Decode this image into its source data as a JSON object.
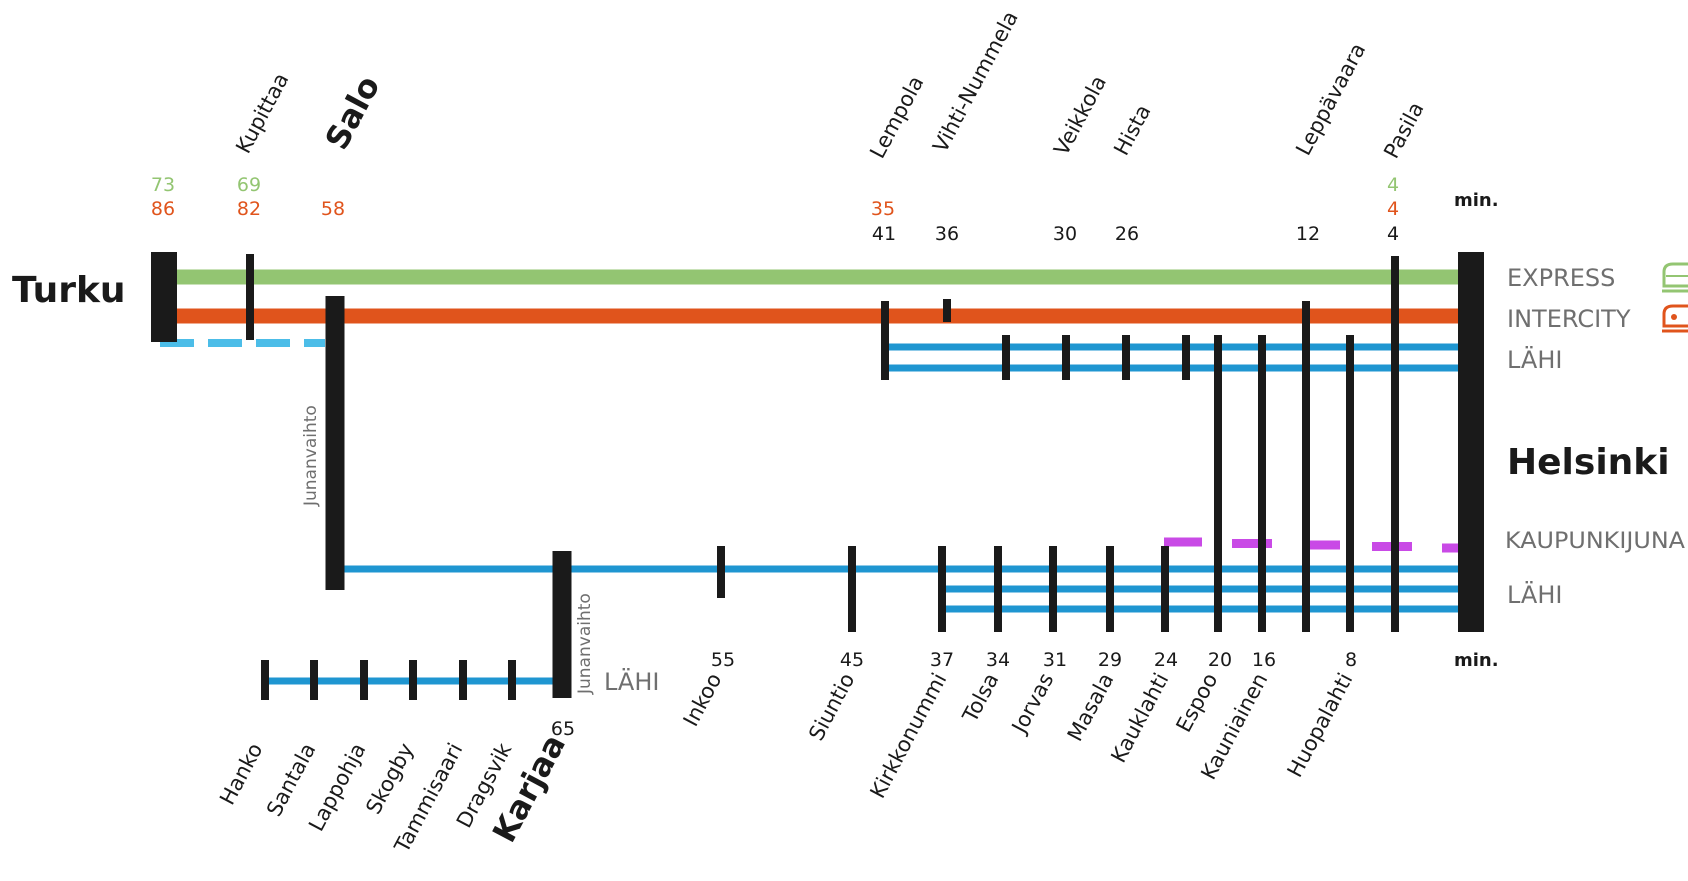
{
  "colors": {
    "express": "#93c572",
    "intercity": "#e0541c",
    "lahi": "#1f96d1",
    "lahi_dashed": "#4cbde8",
    "kaupunkijuna": "#c94ae6",
    "station": "#1a1a1a",
    "label_gray": "#6f6f6f"
  },
  "endpoints": {
    "turku": "Turku",
    "helsinki": "Helsinki"
  },
  "legend": {
    "express": "EXPRESS",
    "intercity": "INTERCITY",
    "lahi_top": "LÄHI",
    "kaupunkijuna": "KAUPUNKIJUNA",
    "lahi_bottom": "LÄHI",
    "lahi_branch": "LÄHI",
    "icons": {
      "express": "train-icon",
      "intercity": "intercity-train-icon"
    }
  },
  "units": {
    "top": "min.",
    "bottom": "min."
  },
  "transfer_labels": {
    "salo": "Junanvaihto",
    "karjaa": "Junanvaihto"
  },
  "top_stations": [
    {
      "name": "Kupittaa",
      "bold": false
    },
    {
      "name": "Salo",
      "bold": true
    },
    {
      "name": "Lempola",
      "bold": false
    },
    {
      "name": "Vihti-Nummela",
      "bold": false
    },
    {
      "name": "Veikkola",
      "bold": false
    },
    {
      "name": "Hista",
      "bold": false
    },
    {
      "name": "Leppävaara",
      "bold": false
    },
    {
      "name": "Pasila",
      "bold": false
    }
  ],
  "top_times": {
    "express": [
      {
        "value": "73"
      },
      {
        "value": "69"
      },
      {
        "value": "4"
      }
    ],
    "intercity": [
      {
        "value": "86"
      },
      {
        "value": "82"
      },
      {
        "value": "58"
      },
      {
        "value": "35"
      },
      {
        "value": "4"
      }
    ],
    "lahi": [
      {
        "value": "41"
      },
      {
        "value": "36"
      },
      {
        "value": "30"
      },
      {
        "value": "26"
      },
      {
        "value": "12"
      },
      {
        "value": "4"
      }
    ]
  },
  "bottom_stations": [
    {
      "name": "Hanko",
      "bold": false
    },
    {
      "name": "Santala",
      "bold": false
    },
    {
      "name": "Lappohja",
      "bold": false
    },
    {
      "name": "Skogby",
      "bold": false
    },
    {
      "name": "Tammisaari",
      "bold": false
    },
    {
      "name": "Dragsvik",
      "bold": false
    },
    {
      "name": "Karjaa",
      "bold": true
    },
    {
      "name": "Inkoo",
      "bold": false
    },
    {
      "name": "Siuntio",
      "bold": false
    },
    {
      "name": "Kirkkonummi",
      "bold": false
    },
    {
      "name": "Tolsa",
      "bold": false
    },
    {
      "name": "Jorvas",
      "bold": false
    },
    {
      "name": "Masala",
      "bold": false
    },
    {
      "name": "Kauklahti",
      "bold": false
    },
    {
      "name": "Espoo",
      "bold": false
    },
    {
      "name": "Kauniainen",
      "bold": false
    },
    {
      "name": "Huopalahti",
      "bold": false
    }
  ],
  "bottom_times": [
    {
      "value": "65"
    },
    {
      "value": "55"
    },
    {
      "value": "45"
    },
    {
      "value": "37"
    },
    {
      "value": "34"
    },
    {
      "value": "31"
    },
    {
      "value": "29"
    },
    {
      "value": "24"
    },
    {
      "value": "20"
    },
    {
      "value": "16"
    },
    {
      "value": "8"
    }
  ]
}
